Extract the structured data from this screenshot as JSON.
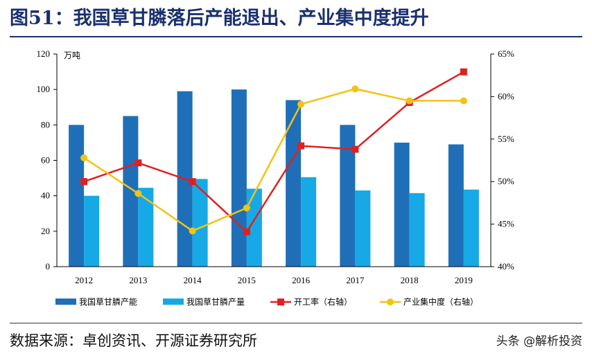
{
  "title": "图51：我国草甘膦落后产能退出、产业集中度提升",
  "source": "数据来源：卓创资讯、开源证券研究所",
  "watermark": "头条 @解析投资",
  "colors": {
    "title": "#1a2f6e",
    "capacity": "#1f6fb8",
    "output": "#17a9e6",
    "utilization": "#e02020",
    "concentration": "#f5c211"
  },
  "chart_data": {
    "type": "bar",
    "categories": [
      "2012",
      "2013",
      "2014",
      "2015",
      "2016",
      "2017",
      "2018",
      "2019"
    ],
    "y_left": {
      "unit": "万吨",
      "ylim": [
        0,
        120
      ],
      "ticks": [
        "0",
        "20",
        "40",
        "60",
        "80",
        "100",
        "120"
      ]
    },
    "y_right": {
      "ylim": [
        40,
        65
      ],
      "ticks": [
        "40%",
        "45%",
        "50%",
        "55%",
        "60%",
        "65%"
      ]
    },
    "series": [
      {
        "name": "我国草甘膦产能",
        "type": "bar",
        "axis": "left",
        "values": [
          80,
          85,
          99,
          100,
          94,
          80,
          70,
          69
        ]
      },
      {
        "name": "我国草甘膦产量",
        "type": "bar",
        "axis": "left",
        "values": [
          40,
          44.5,
          49.5,
          44,
          50.5,
          43,
          41.5,
          43.5
        ]
      },
      {
        "name": "开工率（右轴）",
        "type": "line",
        "axis": "right",
        "marker": "square",
        "values": [
          50.0,
          52.2,
          50.0,
          44.1,
          54.2,
          53.8,
          59.3,
          62.9
        ]
      },
      {
        "name": "产业集中度（右轴）",
        "type": "line",
        "axis": "right",
        "marker": "circle",
        "values": [
          52.8,
          48.6,
          44.2,
          46.9,
          59.1,
          60.9,
          59.5,
          59.5
        ]
      }
    ],
    "legend": "bottom",
    "grid": false
  }
}
